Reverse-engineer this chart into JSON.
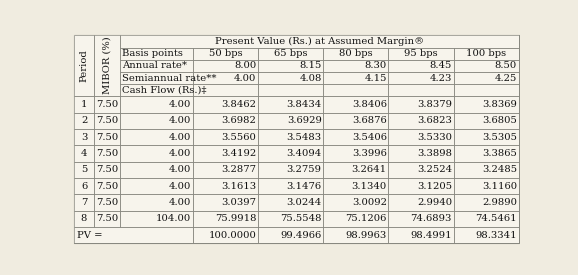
{
  "header_title": "Present Value (Rs.) at Assumed Margin®",
  "bps_labels": [
    "50 bps",
    "65 bps",
    "80 bps",
    "95 bps",
    "100 bps"
  ],
  "annual_vals": [
    "8.00",
    "8.15",
    "8.30",
    "8.45",
    "8.50"
  ],
  "semi_vals": [
    "4.00",
    "4.08",
    "4.15",
    "4.23",
    "4.25"
  ],
  "cash_flow_label": "Cash Flow (Rs.)‡",
  "data_rows": [
    [
      "1",
      "7.50",
      "4.00",
      "3.8462",
      "3.8434",
      "3.8406",
      "3.8379",
      "3.8369"
    ],
    [
      "2",
      "7.50",
      "4.00",
      "3.6982",
      "3.6929",
      "3.6876",
      "3.6823",
      "3.6805"
    ],
    [
      "3",
      "7.50",
      "4.00",
      "3.5560",
      "3.5483",
      "3.5406",
      "3.5330",
      "3.5305"
    ],
    [
      "4",
      "7.50",
      "4.00",
      "3.4192",
      "3.4094",
      "3.3996",
      "3.3898",
      "3.3865"
    ],
    [
      "5",
      "7.50",
      "4.00",
      "3.2877",
      "3.2759",
      "3.2641",
      "3.2524",
      "3.2485"
    ],
    [
      "6",
      "7.50",
      "4.00",
      "3.1613",
      "3.1476",
      "3.1340",
      "3.1205",
      "3.1160"
    ],
    [
      "7",
      "7.50",
      "4.00",
      "3.0397",
      "3.0244",
      "3.0092",
      "2.9940",
      "2.9890"
    ],
    [
      "8",
      "7.50",
      "104.00",
      "75.9918",
      "75.5548",
      "75.1206",
      "74.6893",
      "74.5461"
    ]
  ],
  "pv_vals": [
    "100.0000",
    "99.4966",
    "98.9963",
    "98.4991",
    "98.3341"
  ],
  "bg_color": "#f0ece0",
  "cell_bg": "#f7f4ec",
  "border_color": "#888880",
  "text_color": "#111111",
  "font_size": 7.2,
  "col_widths_raw": [
    22,
    28,
    78,
    70,
    70,
    70,
    70,
    70
  ],
  "row_heights_raw": [
    16,
    15,
    15,
    15,
    15,
    20,
    20,
    20,
    20,
    20,
    20,
    20,
    20,
    20
  ]
}
